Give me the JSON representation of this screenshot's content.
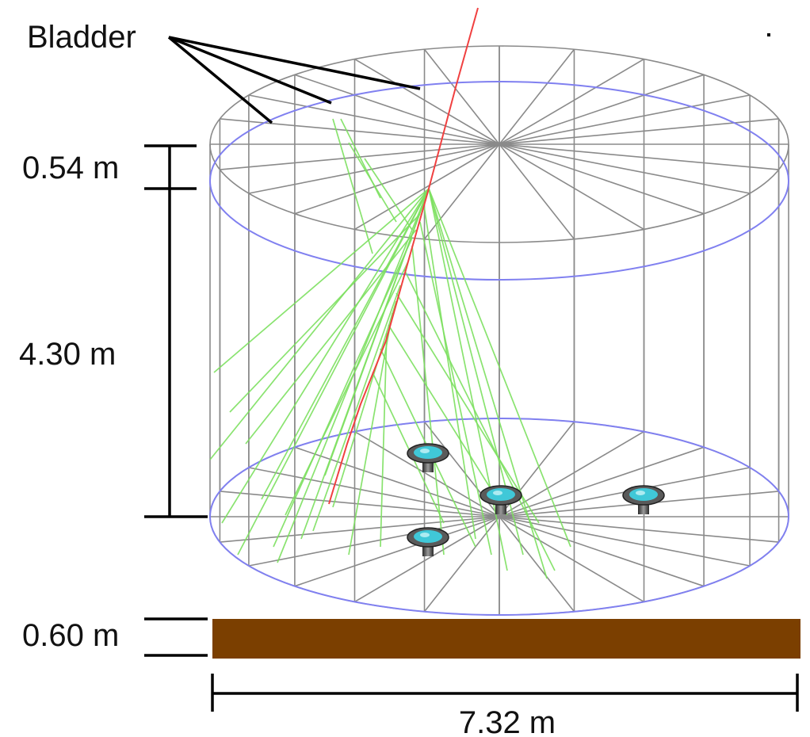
{
  "labels": {
    "bladder": "Bladder",
    "top_gap": "0.54 m",
    "water_height": "4.30 m",
    "base_thickness": "0.60 m",
    "diameter": "7.32 m"
  },
  "colors": {
    "wireframe": "#8a8a8a",
    "bladder": "#8080f0",
    "cherenkov_light": "#7de060",
    "muon_track": "#f04040",
    "base_slab": "#7b3f00",
    "pmt_face": "#40c8d8"
  },
  "pmt_count": 4
}
